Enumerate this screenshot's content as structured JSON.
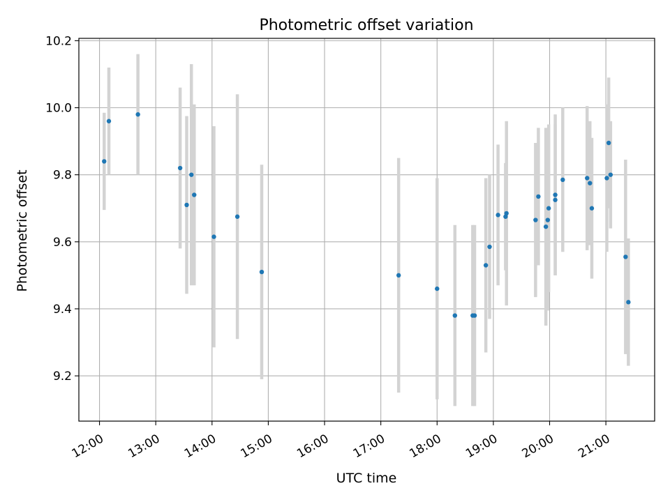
{
  "chart_data": {
    "type": "scatter",
    "title": "Photometric offset variation",
    "xlabel": "UTC time",
    "ylabel": "Photometric offset",
    "xlim": [
      "11:38",
      "21:52"
    ],
    "ylim": [
      9.065,
      10.207
    ],
    "x_ticks": [
      "12:00",
      "13:00",
      "14:00",
      "15:00",
      "16:00",
      "17:00",
      "18:00",
      "19:00",
      "20:00",
      "21:00"
    ],
    "y_ticks": [
      "9.2",
      "9.4",
      "9.6",
      "9.8",
      "10.0",
      "10.2"
    ],
    "grid": true,
    "marker_color": "#1f77b4",
    "errorbar_color": "#d3d3d3",
    "points": [
      {
        "t": "12:05",
        "y": 9.84,
        "err": 0.145
      },
      {
        "t": "12:10",
        "y": 9.96,
        "err": 0.16
      },
      {
        "t": "12:41",
        "y": 9.98,
        "err": 0.18
      },
      {
        "t": "13:26",
        "y": 9.82,
        "err": 0.24
      },
      {
        "t": "13:33",
        "y": 9.71,
        "err": 0.265
      },
      {
        "t": "13:38",
        "y": 9.8,
        "err": 0.33
      },
      {
        "t": "13:41",
        "y": 9.74,
        "err": 0.27
      },
      {
        "t": "14:02",
        "y": 9.615,
        "err": 0.33
      },
      {
        "t": "14:27",
        "y": 9.675,
        "err": 0.365
      },
      {
        "t": "14:53",
        "y": 9.51,
        "err": 0.32
      },
      {
        "t": "17:19",
        "y": 9.5,
        "err": 0.35
      },
      {
        "t": "18:00",
        "y": 9.46,
        "err": 0.33
      },
      {
        "t": "18:19",
        "y": 9.38,
        "err": 0.27
      },
      {
        "t": "18:38",
        "y": 9.38,
        "err": 0.27
      },
      {
        "t": "18:40",
        "y": 9.38,
        "err": 0.27
      },
      {
        "t": "18:52",
        "y": 9.53,
        "err": 0.26
      },
      {
        "t": "18:56",
        "y": 9.585,
        "err": 0.215
      },
      {
        "t": "19:05",
        "y": 9.68,
        "err": 0.21
      },
      {
        "t": "19:13",
        "y": 9.675,
        "err": 0.16
      },
      {
        "t": "19:14",
        "y": 9.685,
        "err": 0.275
      },
      {
        "t": "19:45",
        "y": 9.665,
        "err": 0.23
      },
      {
        "t": "19:48",
        "y": 9.735,
        "err": 0.205
      },
      {
        "t": "19:56",
        "y": 9.645,
        "err": 0.295
      },
      {
        "t": "19:58",
        "y": 9.665,
        "err": 0.27
      },
      {
        "t": "19:59",
        "y": 9.7,
        "err": 0.25
      },
      {
        "t": "20:06",
        "y": 9.74,
        "err": 0.24
      },
      {
        "t": "20:06",
        "y": 9.725,
        "err": 0.225
      },
      {
        "t": "20:14",
        "y": 9.785,
        "err": 0.215
      },
      {
        "t": "20:40",
        "y": 9.79,
        "err": 0.215
      },
      {
        "t": "20:43",
        "y": 9.775,
        "err": 0.185
      },
      {
        "t": "20:45",
        "y": 9.7,
        "err": 0.21
      },
      {
        "t": "21:01",
        "y": 9.79,
        "err": 0.22
      },
      {
        "t": "21:03",
        "y": 9.895,
        "err": 0.195
      },
      {
        "t": "21:05",
        "y": 9.8,
        "err": 0.16
      },
      {
        "t": "21:21",
        "y": 9.555,
        "err": 0.29
      },
      {
        "t": "21:24",
        "y": 9.42,
        "err": 0.19
      }
    ]
  }
}
